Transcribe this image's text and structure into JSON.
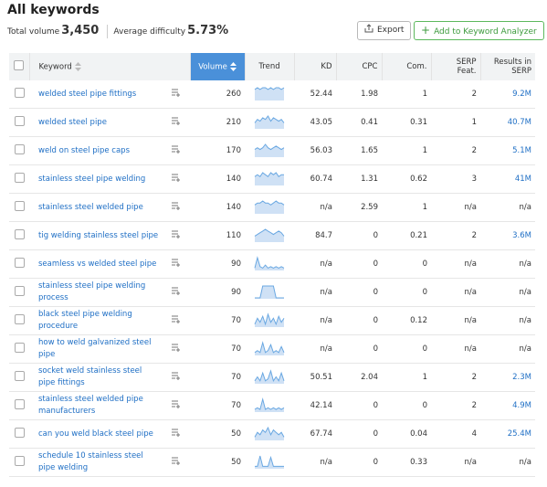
{
  "header": {
    "title": "All keywords",
    "total_volume_label": "Total volume",
    "total_volume": "3,450",
    "avg_difficulty_label": "Average difficulty",
    "avg_difficulty": "5.73%",
    "export_button": "Export",
    "add_button": "Add to Keyword Analyzer"
  },
  "table": {
    "columns": [
      "Keyword",
      "Volume",
      "Trend",
      "KD",
      "CPC",
      "Com.",
      "SERP Feat.",
      "Results in SERP"
    ],
    "rows": [
      {
        "keyword": "welded steel pipe fittings",
        "volume": "260",
        "kd": "52.44",
        "cpc": "1.98",
        "com": "1",
        "serp": "2",
        "results": "9.2M",
        "trend": [
          6,
          7,
          6,
          7,
          7,
          6,
          7,
          6,
          7,
          7,
          6,
          7
        ]
      },
      {
        "keyword": "welded steel pipe",
        "volume": "210",
        "kd": "43.05",
        "cpc": "0.41",
        "com": "0.31",
        "serp": "1",
        "results": "40.7M",
        "trend": [
          3,
          5,
          4,
          6,
          5,
          7,
          4,
          6,
          5,
          4,
          5,
          3
        ]
      },
      {
        "keyword": "weld on steel pipe caps",
        "volume": "170",
        "kd": "56.03",
        "cpc": "1.65",
        "com": "1",
        "serp": "2",
        "results": "5.1M",
        "trend": [
          4,
          5,
          4,
          5,
          7,
          5,
          4,
          5,
          6,
          5,
          4,
          5
        ]
      },
      {
        "keyword": "stainless steel pipe welding",
        "volume": "140",
        "kd": "60.74",
        "cpc": "1.31",
        "com": "0.62",
        "serp": "3",
        "results": "41M",
        "trend": [
          4,
          5,
          4,
          6,
          5,
          4,
          6,
          5,
          6,
          4,
          5,
          5
        ]
      },
      {
        "keyword": "stainless steel welded pipe",
        "volume": "140",
        "kd": "n/a",
        "cpc": "2.59",
        "com": "1",
        "serp": "n/a",
        "results": "n/a",
        "trend": [
          4,
          5,
          5,
          6,
          5,
          5,
          4,
          5,
          6,
          5,
          5,
          4
        ]
      },
      {
        "keyword": "tig welding stainless steel pipe",
        "volume": "110",
        "kd": "84.7",
        "cpc": "0",
        "com": "0.21",
        "serp": "2",
        "results": "3.6M",
        "trend": [
          3,
          4,
          5,
          6,
          7,
          6,
          5,
          4,
          5,
          6,
          5,
          3
        ]
      },
      {
        "keyword": "seamless vs welded steel pipe",
        "volume": "90",
        "kd": "n/a",
        "cpc": "0",
        "com": "0",
        "serp": "n/a",
        "results": "n/a",
        "trend": [
          1,
          8,
          2,
          1,
          3,
          1,
          2,
          1,
          2,
          1,
          2,
          1
        ]
      },
      {
        "keyword": "stainless steel pipe welding process",
        "volume": "90",
        "kd": "n/a",
        "cpc": "0",
        "com": "0",
        "serp": "n/a",
        "results": "n/a",
        "trend": [
          0,
          0,
          0,
          9,
          9,
          9,
          9,
          9,
          0,
          0,
          0,
          0
        ]
      },
      {
        "keyword": "black steel pipe welding procedure",
        "volume": "70",
        "kd": "n/a",
        "cpc": "0",
        "com": "0.12",
        "serp": "n/a",
        "results": "n/a",
        "trend": [
          1,
          4,
          2,
          5,
          1,
          6,
          2,
          4,
          1,
          5,
          2,
          4
        ]
      },
      {
        "keyword": "how to weld galvanized steel pipe",
        "volume": "70",
        "kd": "n/a",
        "cpc": "0",
        "com": "0",
        "serp": "n/a",
        "results": "n/a",
        "trend": [
          1,
          2,
          1,
          6,
          1,
          2,
          5,
          1,
          2,
          1,
          4,
          1
        ]
      },
      {
        "keyword": "socket weld stainless steel pipe fittings",
        "volume": "70",
        "kd": "50.51",
        "cpc": "2.04",
        "com": "1",
        "serp": "2",
        "results": "2.3M",
        "trend": [
          1,
          3,
          1,
          5,
          1,
          2,
          6,
          1,
          3,
          1,
          5,
          1
        ]
      },
      {
        "keyword": "stainless steel welded pipe manufacturers",
        "volume": "70",
        "kd": "42.14",
        "cpc": "0",
        "com": "0",
        "serp": "2",
        "results": "4.9M",
        "trend": [
          1,
          2,
          1,
          7,
          1,
          2,
          1,
          2,
          1,
          2,
          1,
          2
        ]
      },
      {
        "keyword": "can you weld black steel pipe",
        "volume": "50",
        "kd": "67.74",
        "cpc": "0",
        "com": "0.04",
        "serp": "4",
        "results": "25.4M",
        "trend": [
          1,
          3,
          2,
          4,
          3,
          5,
          2,
          4,
          3,
          2,
          3,
          1
        ]
      },
      {
        "keyword": "schedule 10 stainless steel pipe welding",
        "volume": "50",
        "kd": "n/a",
        "cpc": "0",
        "com": "0.33",
        "serp": "n/a",
        "results": "n/a",
        "trend": [
          1,
          1,
          8,
          1,
          1,
          1,
          7,
          1,
          1,
          1,
          1,
          1
        ]
      }
    ]
  }
}
